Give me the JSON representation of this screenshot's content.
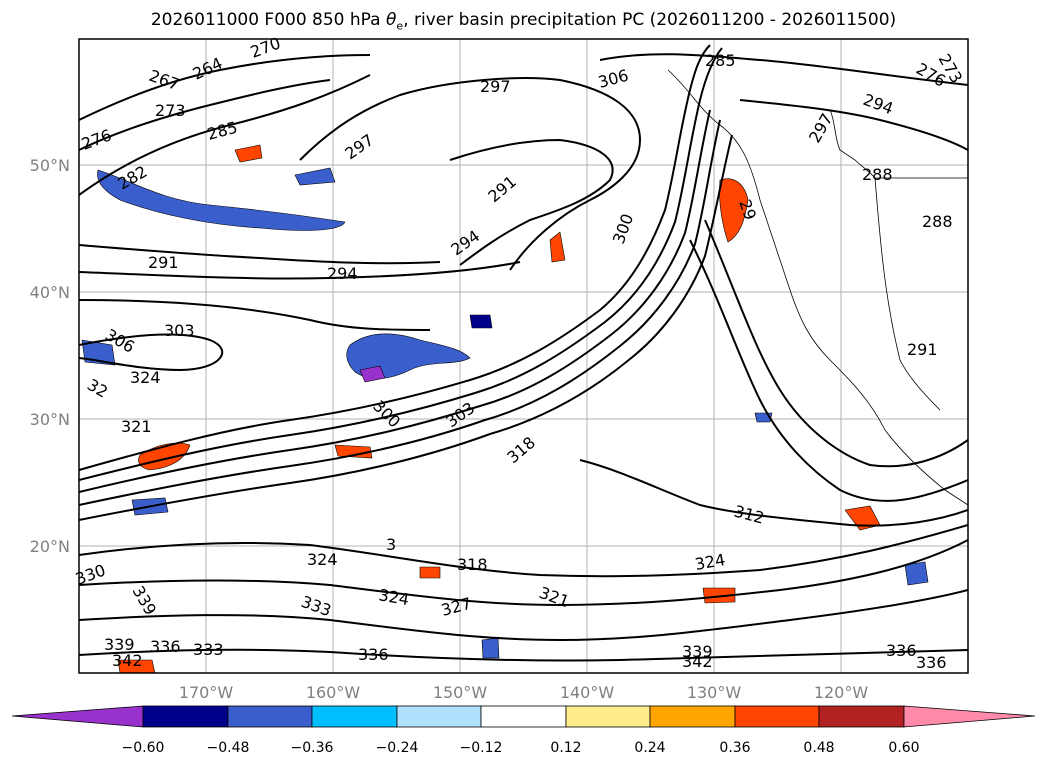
{
  "title": {
    "prefix": "2026011000 F000 850 hPa ",
    "symbol": "θ",
    "subscript": "e",
    "suffix": ", river basin precipitation PC (2026011200 - 2026011500)"
  },
  "map": {
    "region": "North Pacific / western North America",
    "grid_lines": true,
    "lat_labels": [
      "50°N",
      "40°N",
      "30°N",
      "20°N"
    ],
    "lon_labels": [
      "170°W",
      "160°W",
      "150°W",
      "140°W",
      "130°W",
      "120°W"
    ],
    "contour_variable": "850 hPa theta-e (K)",
    "contour_labels": [
      "267",
      "264",
      "270",
      "273",
      "276",
      "285",
      "282",
      "297",
      "297",
      "306",
      "285",
      "276",
      "273",
      "294",
      "297",
      "288",
      "291",
      "294",
      "291",
      "294",
      "288",
      "300",
      "29",
      "306",
      "303",
      "324",
      "32",
      "321",
      "300",
      "303",
      "318",
      "291",
      "312",
      "324",
      "324",
      "3",
      "318",
      "333",
      "324",
      "327",
      "321",
      "330",
      "339",
      "339",
      "336",
      "333",
      "342",
      "336",
      "339",
      "342",
      "336",
      "336"
    ]
  },
  "colorbar": {
    "variable": "river basin precipitation PC",
    "tick_labels": [
      "−0.60",
      "−0.48",
      "−0.36",
      "−0.24",
      "−0.12",
      "0.12",
      "0.24",
      "0.36",
      "0.48",
      "0.60"
    ],
    "colors": [
      "#9932cc",
      "#00008b",
      "#3a5fcd",
      "#00bfff",
      "#b0e2ff",
      "#ffffff",
      "#ffec8b",
      "#ffa500",
      "#ff4500",
      "#b22222",
      "#ff8aaa"
    ],
    "extend": "both"
  }
}
